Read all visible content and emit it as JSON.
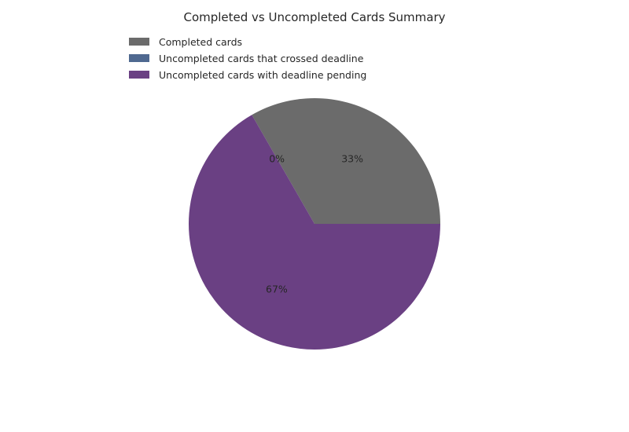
{
  "chart_data": {
    "type": "pie",
    "title": "Completed vs Uncompleted Cards Summary",
    "categories": [
      "Completed cards",
      "Uncompleted cards that crossed deadline",
      "Uncompleted cards with deadline pending"
    ],
    "values": [
      33.3,
      0,
      66.7
    ],
    "autopct_labels": [
      "33%",
      "0%",
      "67%"
    ],
    "colors": [
      "#6b6b6b",
      "#4f6990",
      "#6a4083"
    ],
    "start_angle_deg": 0,
    "direction": "counterclockwise",
    "legend_position": "upper-left"
  }
}
